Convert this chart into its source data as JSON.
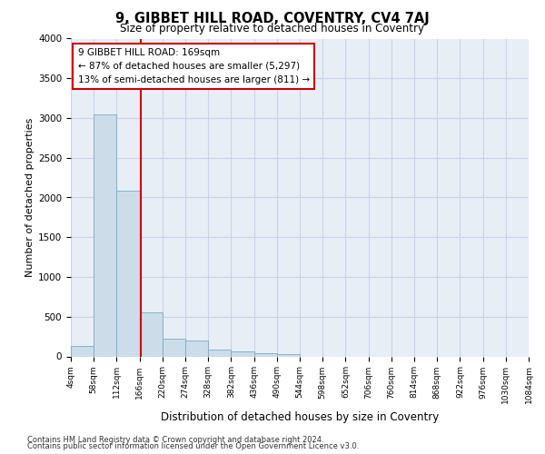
{
  "title": "9, GIBBET HILL ROAD, COVENTRY, CV4 7AJ",
  "subtitle": "Size of property relative to detached houses in Coventry",
  "xlabel": "Distribution of detached houses by size in Coventry",
  "ylabel": "Number of detached properties",
  "footnote1": "Contains HM Land Registry data © Crown copyright and database right 2024.",
  "footnote2": "Contains public sector information licensed under the Open Government Licence v3.0.",
  "bar_color": "#ccdce8",
  "bar_edge_color": "#7aaac8",
  "grid_color": "#c8d4e4",
  "background_color": "#e8eef6",
  "annotation_box_color": "#cc0000",
  "property_line_color": "#cc0000",
  "bin_edges": [
    4,
    58,
    112,
    166,
    220,
    274,
    328,
    382,
    436,
    490,
    544,
    598,
    652,
    706,
    760,
    814,
    868,
    922,
    976,
    1030,
    1084
  ],
  "bar_heights": [
    130,
    3050,
    2080,
    550,
    220,
    200,
    90,
    60,
    45,
    25,
    0,
    0,
    0,
    0,
    0,
    0,
    0,
    0,
    0,
    0
  ],
  "property_size": 169,
  "annotation_line1": "9 GIBBET HILL ROAD: 169sqm",
  "annotation_line2": "← 87% of detached houses are smaller (5,297)",
  "annotation_line3": "13% of semi-detached houses are larger (811) →",
  "ylim": [
    0,
    4000
  ],
  "yticks": [
    0,
    500,
    1000,
    1500,
    2000,
    2500,
    3000,
    3500,
    4000
  ]
}
